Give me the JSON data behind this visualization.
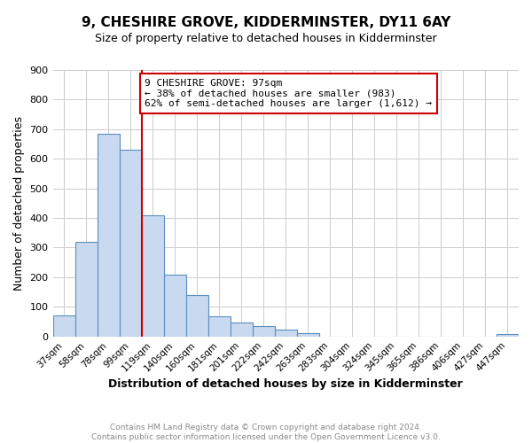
{
  "title": "9, CHESHIRE GROVE, KIDDERMINSTER, DY11 6AY",
  "subtitle": "Size of property relative to detached houses in Kidderminster",
  "xlabel": "Distribution of detached houses by size in Kidderminster",
  "ylabel": "Number of detached properties",
  "footer_line1": "Contains HM Land Registry data © Crown copyright and database right 2024.",
  "footer_line2": "Contains public sector information licensed under the Open Government Licence v3.0.",
  "bin_labels": [
    "37sqm",
    "58sqm",
    "78sqm",
    "99sqm",
    "119sqm",
    "140sqm",
    "160sqm",
    "181sqm",
    "201sqm",
    "222sqm",
    "242sqm",
    "263sqm",
    "283sqm",
    "304sqm",
    "324sqm",
    "345sqm",
    "365sqm",
    "386sqm",
    "406sqm",
    "427sqm",
    "447sqm"
  ],
  "bar_heights": [
    70,
    320,
    685,
    630,
    410,
    210,
    140,
    68,
    47,
    35,
    22,
    10,
    0,
    0,
    0,
    0,
    0,
    0,
    0,
    0,
    7
  ],
  "bar_color": "#c9d9f0",
  "bar_edge_color": "#5a8fc0",
  "vline_color": "#cc0000",
  "annotation_text": "9 CHESHIRE GROVE: 97sqm\n← 38% of detached houses are smaller (983)\n62% of semi-detached houses are larger (1,612) →",
  "annotation_box_color": "#cc0000",
  "ylim": [
    0,
    900
  ],
  "yticks": [
    0,
    100,
    200,
    300,
    400,
    500,
    600,
    700,
    800,
    900
  ],
  "bg_color": "#ffffff",
  "grid_color": "#cccccc"
}
